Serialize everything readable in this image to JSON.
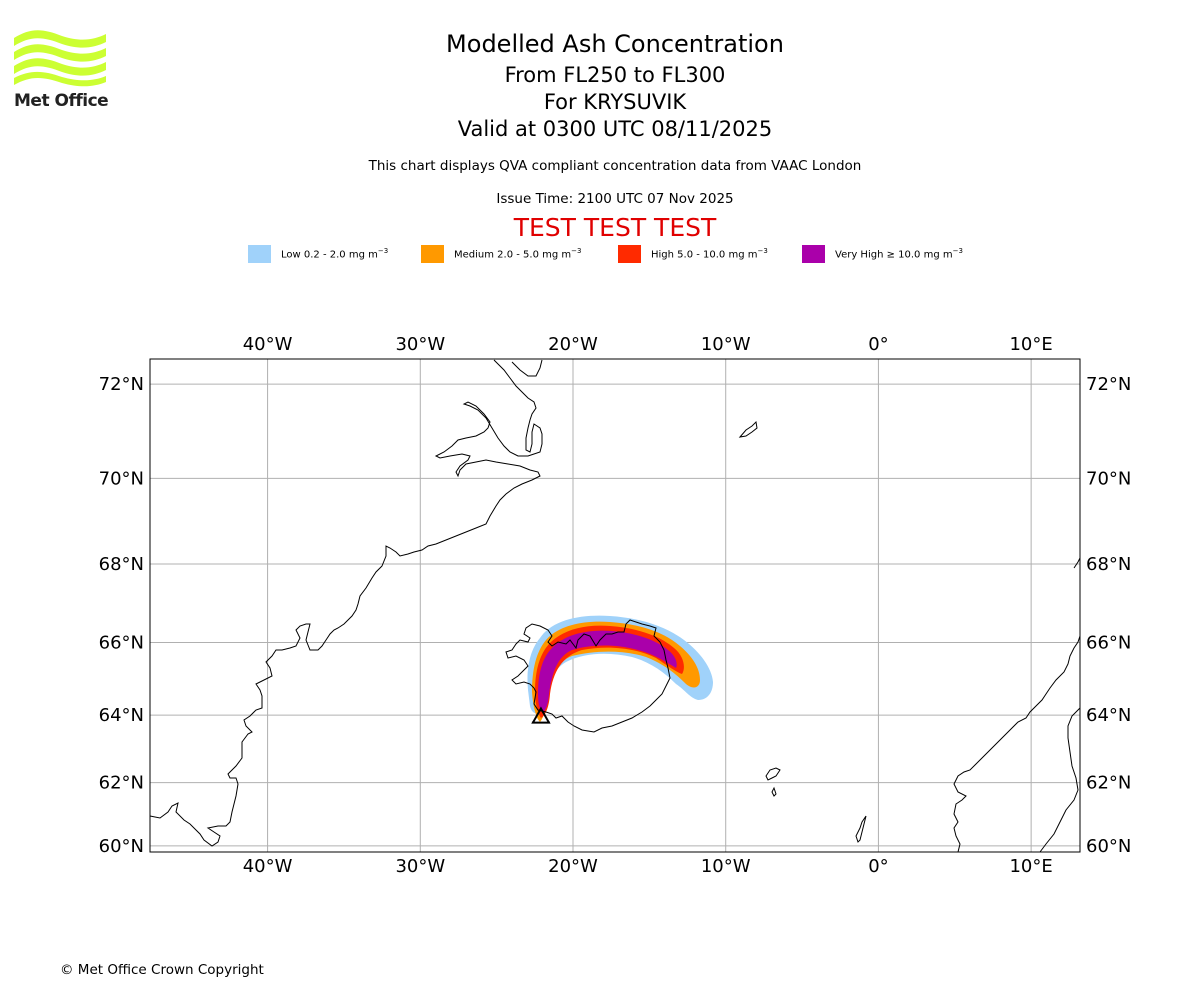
{
  "logo": {
    "name": "Met Office",
    "color": "#ccff33"
  },
  "header": {
    "title": "Modelled Ash Concentration",
    "levels": "From FL250 to FL300",
    "volcano": "For KRYSUVIK",
    "valid": "Valid at 0300 UTC 08/11/2025",
    "description": "This chart displays QVA compliant concentration data from VAAC London",
    "issue_time": "Issue Time: 2100 UTC 07 Nov 2025",
    "test_banner": "TEST TEST TEST"
  },
  "legend": [
    {
      "label": "Low 0.2 - 2.0 mg m",
      "unit_exp": "−3",
      "color": "#a0d2fa"
    },
    {
      "label": "Medium 2.0 - 5.0 mg m",
      "unit_exp": "−3",
      "color": "#ff9900"
    },
    {
      "label": "High 5.0 - 10.0 mg m",
      "unit_exp": "−3",
      "color": "#ff2a00"
    },
    {
      "label": "Very High  ≥  10.0 mg m",
      "unit_exp": "−3",
      "color": "#aa00aa"
    }
  ],
  "map": {
    "lon_ticks": [
      "40°W",
      "30°W",
      "20°W",
      "10°W",
      "0°",
      "10°E"
    ],
    "lon_values": [
      -40,
      -30,
      -20,
      -10,
      0,
      10
    ],
    "lat_ticks": [
      "72°N",
      "70°N",
      "68°N",
      "66°N",
      "64°N",
      "62°N",
      "60°N"
    ],
    "lat_values": [
      72,
      70,
      68,
      66,
      64,
      62,
      60
    ],
    "lon_range": [
      -47.7,
      13.2
    ],
    "lat_range": [
      59.8,
      72.5
    ],
    "grid_color": "#b0b0b0",
    "volcano_marker": {
      "lon": -22.1,
      "lat": 63.9,
      "symbol": "triangle"
    }
  },
  "footer": {
    "copyright": "© Met Office Crown Copyright"
  }
}
